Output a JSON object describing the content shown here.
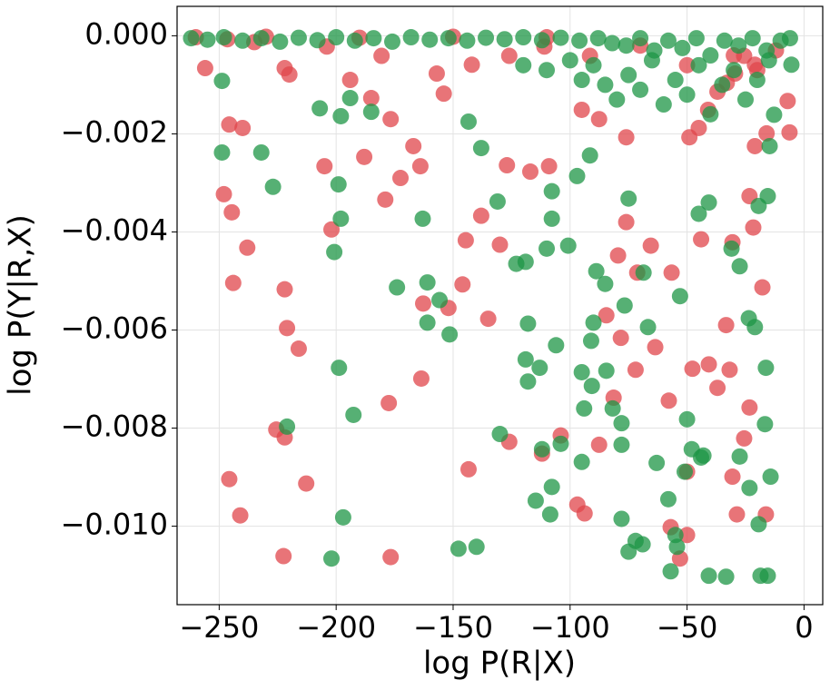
{
  "chart_data": {
    "type": "scatter",
    "x_label": "log P(R|X)",
    "y_label": "log P(Y|R,X)",
    "xlim": [
      -268,
      8
    ],
    "ylim": [
      -0.0116,
      0.0006
    ],
    "xticks": [
      {
        "value": -250,
        "label": "−250"
      },
      {
        "value": -200,
        "label": "−200"
      },
      {
        "value": -150,
        "label": "−150"
      },
      {
        "value": -100,
        "label": "−100"
      },
      {
        "value": -50,
        "label": "−50"
      },
      0
    ],
    "yticks": [
      {
        "value": 0,
        "label": "0.000"
      },
      {
        "value": -0.002,
        "label": "−0.002"
      },
      {
        "value": -0.004,
        "label": "−0.004"
      },
      {
        "value": -0.006,
        "label": "−0.006"
      },
      {
        "value": -0.008,
        "label": "−0.008"
      },
      {
        "value": -0.01,
        "label": "−0.010"
      }
    ],
    "grid": true,
    "alpha": 0.75,
    "series": [
      {
        "color": "#e0464b",
        "x": [
          -256,
          -245.7,
          -240,
          -248,
          -244.6,
          -238,
          -244,
          -245.7,
          -241,
          -222,
          -220,
          -222,
          -221,
          -216,
          -225.6,
          -222,
          -212.8,
          -222.5,
          -205,
          -202,
          -194,
          -188,
          -185,
          -176.7,
          -172.5,
          -179,
          -177.5,
          -176.7,
          -167,
          -164,
          -162.8,
          -163.6,
          -154,
          -152,
          -146,
          -144.6,
          -143.4,
          -135,
          -130,
          -127,
          -138,
          -126,
          -117,
          -112,
          -109,
          -104,
          -96.9,
          -93.8,
          -87.6,
          -79.5,
          -76,
          -78.3,
          -81.4,
          -72,
          -65.5,
          -63.6,
          -57.8,
          -57,
          -53,
          -50,
          -47.7,
          -50,
          -44,
          -40.7,
          -37,
          -33.3,
          -31.8,
          -30.6,
          -28.7,
          -25.6,
          -23.3,
          -23.3,
          -17.8,
          -16.3,
          -21,
          -16,
          -6.2,
          -7,
          -21,
          -25.6,
          -29.5,
          -33,
          -37,
          -41,
          -45,
          -49,
          -76,
          -87.6,
          -95,
          -91.5,
          -111,
          -126,
          -142,
          -157,
          -180.6,
          -204,
          -235,
          -246.5,
          -71.3,
          -56.6,
          -84.5,
          -21.7,
          -30.6,
          -260,
          -230,
          -190,
          -150,
          -110,
          -70,
          -50,
          -30,
          -20,
          -12
        ],
        "values": [
          -0.00066,
          -0.00181,
          -0.00188,
          -0.00323,
          -0.0036,
          -0.00432,
          -0.00504,
          -0.00904,
          -0.00978,
          -0.00066,
          -0.00079,
          -0.00517,
          -0.00596,
          -0.00638,
          -0.00803,
          -0.00819,
          -0.00913,
          -0.01061,
          -0.00266,
          -0.00395,
          -0.0009,
          -0.00247,
          -0.00127,
          -0.0017,
          -0.0029,
          -0.00334,
          -0.00749,
          -0.01063,
          -0.00225,
          -0.00266,
          -0.00546,
          -0.00699,
          -0.00118,
          -0.00555,
          -0.00507,
          -0.00417,
          -0.00884,
          -0.00577,
          -0.00426,
          -0.00264,
          -0.00367,
          -0.00828,
          -0.00277,
          -0.00852,
          -0.00266,
          -0.00815,
          -0.00956,
          -0.00974,
          -0.00834,
          -0.00448,
          -0.0038,
          -0.00616,
          -0.00738,
          -0.00681,
          -0.00428,
          -0.00635,
          -0.00744,
          -0.01002,
          -0.01066,
          -0.01018,
          -0.00679,
          -0.00889,
          -0.00415,
          -0.0067,
          -0.00718,
          -0.0059,
          -0.00681,
          -0.00899,
          -0.00976,
          -0.00821,
          -0.00758,
          -0.00327,
          -0.00513,
          -0.00976,
          -0.00225,
          -0.00199,
          -0.00197,
          -0.00133,
          -0.00059,
          -0.00041,
          -0.00077,
          -0.00096,
          -0.00114,
          -0.00151,
          -0.00188,
          -0.00207,
          -0.00207,
          -0.0017,
          -0.00151,
          -0.00041,
          -0.00022,
          -0.00041,
          -0.00059,
          -0.00077,
          -0.00041,
          -0.00022,
          -0.00013,
          -7e-05,
          -0.00483,
          -0.00483,
          -0.0057,
          -0.00391,
          -0.00421,
          -3e-05,
          -2e-05,
          -4e-05,
          -2e-05,
          -3e-05,
          -0.0002,
          -0.0006,
          -0.0004,
          -0.0007,
          -0.0003
        ]
      },
      {
        "color": "#1e9645",
        "x": [
          -248.8,
          -248.8,
          -232,
          -227,
          -221,
          -202,
          -197,
          -192.6,
          -198.8,
          -200.8,
          -198,
          -199,
          -207,
          -198,
          -194,
          -185,
          -174,
          -163,
          -161,
          -161,
          -155.8,
          -151.5,
          -147.7,
          -140,
          -143.4,
          -138,
          -131,
          -130,
          -123,
          -119,
          -118,
          -119,
          -118,
          -114.7,
          -112,
          -113,
          -108.5,
          -107.8,
          -106,
          -110,
          -107.8,
          -107.8,
          -104,
          -100.8,
          -97,
          -95,
          -95,
          -94,
          -91.5,
          -91,
          -90,
          -88.8,
          -90.7,
          -85,
          -84.5,
          -81.8,
          -78,
          -78,
          -78,
          -76.7,
          -75,
          -75,
          -72,
          -69,
          -68.6,
          -66.7,
          -63,
          -58,
          -57,
          -55,
          -54.3,
          -53,
          -51,
          -50,
          -48,
          -45,
          -44,
          -43,
          -40.7,
          -40.7,
          -33.3,
          -31,
          -27.5,
          -27.5,
          -23.6,
          -23.3,
          -21,
          -19.4,
          -18.6,
          -15.5,
          -14.3,
          -16.3,
          -16.7,
          -15.5,
          -19.4,
          -14.7,
          -12.8,
          -5.4,
          -262,
          -255,
          -248,
          -240,
          -232,
          -224,
          -216,
          -208,
          -200,
          -192,
          -184,
          -176,
          -168,
          -160,
          -152,
          -144,
          -136,
          -128,
          -120,
          -112,
          -104,
          -96,
          -88,
          -82,
          -76,
          -70,
          -64,
          -58,
          -52,
          -46,
          -40,
          -34,
          -28,
          -22,
          -16,
          -10,
          -6,
          -90,
          -85,
          -80,
          -75,
          -70,
          -65,
          -60,
          -55,
          -50,
          -45,
          -40,
          -35,
          -30,
          -25,
          -20,
          -15,
          -95,
          -100,
          -110,
          -120
        ],
        "values": [
          -0.00092,
          -0.00238,
          -0.00238,
          -0.00308,
          -0.00797,
          -0.01066,
          -0.00982,
          -0.00773,
          -0.00677,
          -0.00441,
          -0.00373,
          -0.00303,
          -0.00148,
          -0.00164,
          -0.00127,
          -0.00155,
          -0.00513,
          -0.00373,
          -0.00503,
          -0.00585,
          -0.00539,
          -0.00609,
          -0.01046,
          -0.01042,
          -0.00175,
          -0.00229,
          -0.00338,
          -0.00812,
          -0.00465,
          -0.00461,
          -0.00587,
          -0.0066,
          -0.00705,
          -0.00948,
          -0.00843,
          -0.00677,
          -0.00976,
          -0.0092,
          -0.00631,
          -0.00434,
          -0.00373,
          -0.00317,
          -0.00832,
          -0.00428,
          -0.00286,
          -0.00869,
          -0.00686,
          -0.0076,
          -0.00244,
          -0.00622,
          -0.00585,
          -0.0048,
          -0.00714,
          -0.00506,
          -0.00683,
          -0.0076,
          -0.0079,
          -0.00834,
          -0.00985,
          -0.0055,
          -0.00332,
          -0.01052,
          -0.0103,
          -0.01037,
          -0.00483,
          -0.00594,
          -0.00871,
          -0.00945,
          -0.01092,
          -0.01018,
          -0.01042,
          -0.00531,
          -0.00889,
          -0.00782,
          -0.00843,
          -0.00363,
          -0.0086,
          -0.00856,
          -0.0034,
          -0.01101,
          -0.01103,
          -0.00434,
          -0.0047,
          -0.00858,
          -0.00576,
          -0.00922,
          -0.00594,
          -0.00996,
          -0.01101,
          -0.01101,
          -0.00899,
          -0.00677,
          -0.00792,
          -0.00327,
          -0.00347,
          -0.00225,
          -0.00161,
          -0.00059,
          -5e-05,
          -8e-05,
          -3e-05,
          -0.0001,
          -5e-05,
          -0.00012,
          -4e-05,
          -9e-05,
          -3e-05,
          -0.0001,
          -5e-05,
          -0.00012,
          -3e-05,
          -8e-05,
          -5e-05,
          -0.0001,
          -4e-05,
          -7e-05,
          -3e-05,
          -9e-05,
          -4e-05,
          -0.0001,
          -5e-05,
          -0.00015,
          -0.0002,
          -5e-05,
          -0.0003,
          -0.0001,
          -0.00025,
          -5e-05,
          -0.0004,
          -0.0001,
          -0.0002,
          -5e-05,
          -0.0003,
          -0.0001,
          -5e-05,
          -0.0006,
          -0.001,
          -0.0013,
          -0.0008,
          -0.0011,
          -0.0005,
          -0.0014,
          -0.0009,
          -0.0012,
          -0.0006,
          -0.0016,
          -0.001,
          -0.0007,
          -0.0013,
          -0.0009,
          -0.0005,
          -0.0009,
          -0.0005,
          -0.0007,
          -0.0006
        ]
      }
    ]
  }
}
